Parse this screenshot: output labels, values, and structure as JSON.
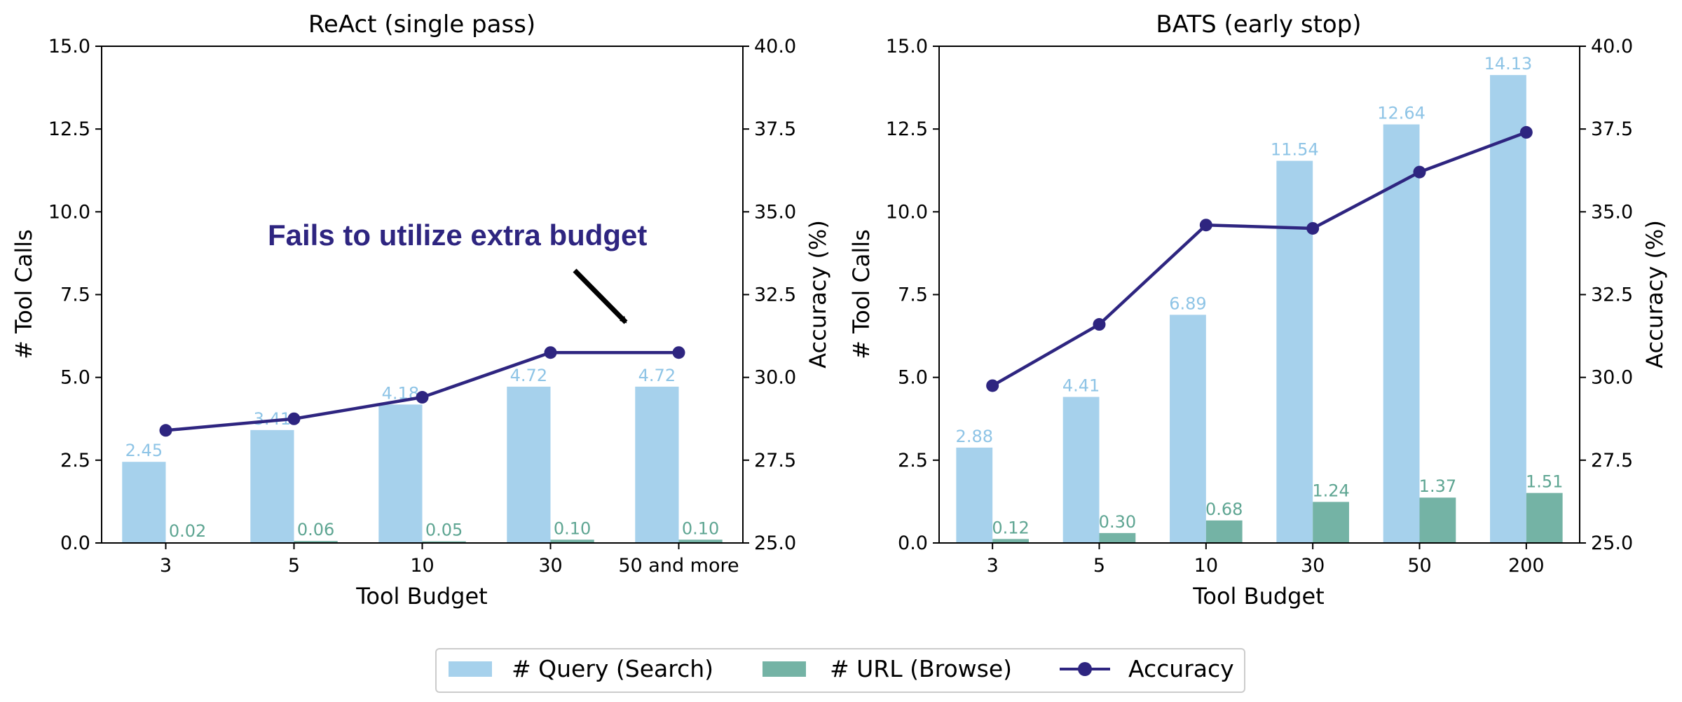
{
  "colors": {
    "query": "#a6d1ec",
    "url": "#74b3a5",
    "accuracy": "#2e2580",
    "query_label": "#8ec4e6",
    "url_label": "#5ea592",
    "annotation": "#2e2580"
  },
  "legend": {
    "query": "# Query (Search)",
    "url": "# URL (Browse)",
    "accuracy": "Accuracy"
  },
  "chart_data": [
    {
      "type": "bar",
      "title": "ReAct (single pass)",
      "xlabel": "Tool Budget",
      "ylabel": "# Tool Calls",
      "y2label": "Accuracy (%)",
      "ylim": [
        0,
        15
      ],
      "y2lim": [
        25,
        40
      ],
      "yticks": [
        "0.0",
        "2.5",
        "5.0",
        "7.5",
        "10.0",
        "12.5",
        "15.0"
      ],
      "y2ticks": [
        "25.0",
        "27.5",
        "30.0",
        "32.5",
        "35.0",
        "37.5",
        "40.0"
      ],
      "categories": [
        "3",
        "5",
        "10",
        "30",
        "50 and more"
      ],
      "series": [
        {
          "name": "# Query (Search)",
          "values": [
            2.45,
            3.41,
            4.18,
            4.72,
            4.72
          ],
          "labels": [
            "2.45",
            "3.41",
            "4.18",
            "4.72",
            "4.72"
          ]
        },
        {
          "name": "# URL (Browse)",
          "values": [
            0.02,
            0.06,
            0.05,
            0.1,
            0.1
          ],
          "labels": [
            "0.02",
            "0.06",
            "0.05",
            "0.10",
            "0.10"
          ]
        },
        {
          "name": "Accuracy",
          "axis": "right",
          "values": [
            28.4,
            28.75,
            29.4,
            30.75,
            30.75
          ]
        }
      ],
      "annotation": "Fails to utilize extra budget"
    },
    {
      "type": "bar",
      "title": "BATS (early stop)",
      "xlabel": "Tool Budget",
      "ylabel": "# Tool Calls",
      "y2label": "Accuracy (%)",
      "ylim": [
        0,
        15
      ],
      "y2lim": [
        25,
        40
      ],
      "yticks": [
        "0.0",
        "2.5",
        "5.0",
        "7.5",
        "10.0",
        "12.5",
        "15.0"
      ],
      "y2ticks": [
        "25.0",
        "27.5",
        "30.0",
        "32.5",
        "35.0",
        "37.5",
        "40.0"
      ],
      "categories": [
        "3",
        "5",
        "10",
        "30",
        "50",
        "200"
      ],
      "series": [
        {
          "name": "# Query (Search)",
          "values": [
            2.88,
            4.41,
            6.89,
            11.54,
            12.64,
            14.13
          ],
          "labels": [
            "2.88",
            "4.41",
            "6.89",
            "11.54",
            "12.64",
            "14.13"
          ]
        },
        {
          "name": "# URL (Browse)",
          "values": [
            0.12,
            0.3,
            0.68,
            1.24,
            1.37,
            1.51
          ],
          "labels": [
            "0.12",
            "0.30",
            "0.68",
            "1.24",
            "1.37",
            "1.51"
          ]
        },
        {
          "name": "Accuracy",
          "axis": "right",
          "values": [
            29.75,
            31.6,
            34.6,
            34.5,
            36.2,
            37.4
          ]
        }
      ]
    }
  ]
}
